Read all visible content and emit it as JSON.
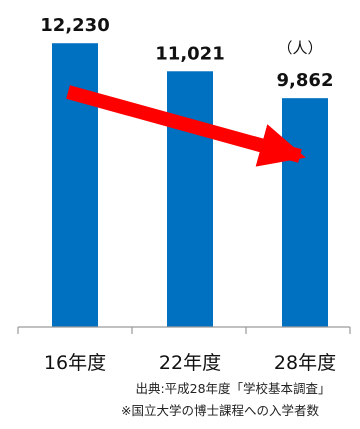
{
  "chart_data": {
    "type": "bar",
    "categories": [
      "16年度",
      "22年度",
      "28年度"
    ],
    "values": [
      12230,
      11021,
      9862
    ],
    "value_labels": [
      "12,230",
      "11,021",
      "9,862"
    ],
    "unit_label": "（人）",
    "ylim": [
      0,
      12800
    ],
    "grid": false,
    "bar_color": "#0070C0",
    "trend_arrow": {
      "from_category": "16年度",
      "to_category": "28年度",
      "color": "#FF0000",
      "direction": "down"
    },
    "source_note": "出典:平成28年度「学校基本調査」",
    "footnote": "※国立大学の博士課程への入学者数"
  }
}
